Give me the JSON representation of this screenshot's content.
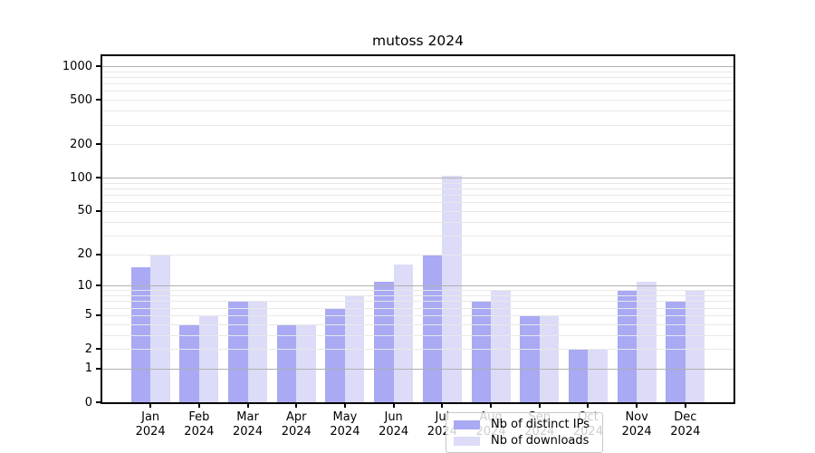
{
  "figure": {
    "background": "#ffffff"
  },
  "chart_data": {
    "type": "bar",
    "title": "mutoss 2024",
    "y_scale": "log1p",
    "ylim": [
      0,
      1228
    ],
    "xlim": [
      -0.99,
      11.99
    ],
    "grid": true,
    "categories": [
      "Jan",
      "Feb",
      "Mar",
      "Apr",
      "May",
      "Jun",
      "Jul",
      "Aug",
      "Sep",
      "Oct",
      "Nov",
      "Dec"
    ],
    "year_label": "2024",
    "series": [
      {
        "name": "Nb of distinct IPs",
        "color": "#a9a9f4",
        "values": [
          15,
          4,
          7,
          4,
          6,
          11,
          20,
          7,
          5,
          2,
          9,
          7
        ]
      },
      {
        "name": "Nb of downloads",
        "color": "#dcdcf8",
        "values": [
          20,
          5,
          7,
          4,
          8,
          16,
          104,
          9,
          5,
          2,
          11,
          9
        ]
      }
    ],
    "y_ticks": [
      0,
      1,
      2,
      5,
      10,
      20,
      50,
      100,
      200,
      500,
      1000
    ],
    "y_major_gridlines": [
      1,
      10,
      100,
      1000
    ],
    "y_minor_gridlines": [
      2,
      3,
      4,
      5,
      6,
      7,
      8,
      9,
      20,
      30,
      40,
      50,
      60,
      70,
      80,
      90,
      200,
      300,
      400,
      500,
      600,
      700,
      800,
      900
    ],
    "legend": {
      "position": "lower center inside plot",
      "entries": [
        "Nb of distinct IPs",
        "Nb of downloads"
      ]
    }
  },
  "colors": {
    "bar_distinct_ips": "#a9a9f4",
    "bar_downloads": "#dcdcf8",
    "major_gridline": "#b0b0b0",
    "minor_gridline": "#e8e8e8",
    "axis_spine": "#000000",
    "legend_border": "#c8c8c8",
    "legend_background": "rgba(255,255,255,0.8)",
    "text": "#000000"
  }
}
